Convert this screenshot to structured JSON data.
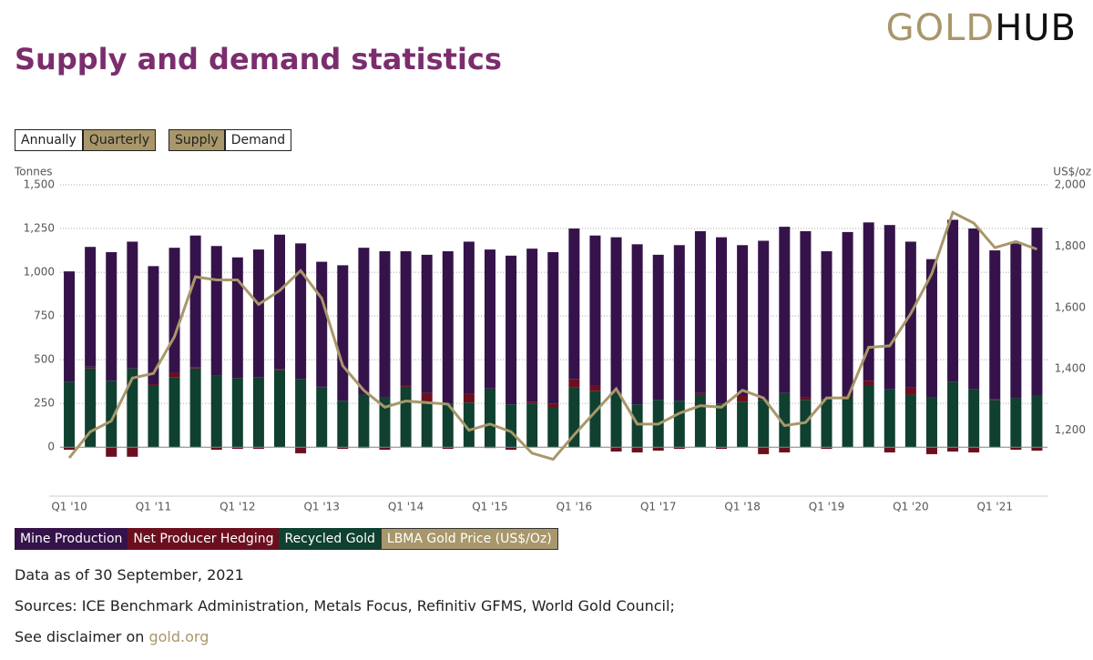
{
  "logo": {
    "gold": "GOLD",
    "hub": "HUB"
  },
  "title": "Supply and demand statistics",
  "controls": {
    "period": [
      "Annually",
      "Quarterly"
    ],
    "view": [
      "Supply",
      "Demand"
    ]
  },
  "chart_data": {
    "type": "bar",
    "stacked": true,
    "grid": true,
    "y_label": "Tonnes",
    "y2_label": "US$/oz",
    "categories": [
      "Q1 '10",
      null,
      null,
      null,
      "Q1 '11",
      null,
      null,
      null,
      "Q1 '12",
      null,
      null,
      null,
      "Q1 '13",
      null,
      null,
      null,
      "Q1 '14",
      null,
      null,
      null,
      "Q1 '15",
      null,
      null,
      null,
      "Q1 '16",
      null,
      null,
      null,
      "Q1 '17",
      null,
      null,
      null,
      "Q1 '18",
      null,
      null,
      null,
      "Q1 '19",
      null,
      null,
      null,
      "Q1 '20",
      null,
      null,
      null,
      "Q1 '21",
      null,
      null
    ],
    "series": [
      {
        "name": "Mine Production",
        "color": "#35134a",
        "values": [
          630,
          685,
          735,
          725,
          675,
          715,
          755,
          740,
          690,
          730,
          770,
          775,
          715,
          775,
          840,
          835,
          765,
          790,
          870,
          870,
          795,
          850,
          875,
          865,
          860,
          860,
          890,
          915,
          830,
          890,
          925,
          950,
          860,
          910,
          950,
          950,
          845,
          935,
          905,
          940,
          835,
          790,
          925,
          920,
          850,
          885,
          960
        ]
      },
      {
        "name": "Net Producer Hedging",
        "color": "#6b0f1f",
        "values": [
          -15,
          10,
          -55,
          -55,
          5,
          25,
          5,
          -15,
          -10,
          -10,
          5,
          -35,
          5,
          -10,
          -5,
          -15,
          10,
          50,
          -10,
          50,
          -5,
          -15,
          10,
          25,
          50,
          30,
          -25,
          -30,
          -20,
          -10,
          10,
          -10,
          35,
          -40,
          -30,
          15,
          -10,
          5,
          25,
          -30,
          40,
          -40,
          -25,
          -30,
          5,
          -15,
          -20
        ]
      },
      {
        "name": "Recycled Gold",
        "color": "#0f4030",
        "values": [
          375,
          450,
          380,
          450,
          355,
          400,
          450,
          410,
          395,
          400,
          440,
          390,
          340,
          265,
          300,
          285,
          345,
          260,
          250,
          255,
          335,
          245,
          250,
          225,
          340,
          320,
          310,
          245,
          270,
          265,
          300,
          250,
          260,
          270,
          310,
          270,
          275,
          290,
          355,
          330,
          300,
          285,
          375,
          330,
          270,
          280,
          295
        ]
      },
      {
        "name": "LBMA Gold Price (US$/Oz)",
        "color": "#a8976a",
        "type": "line",
        "axis": "y2",
        "values": [
          1110,
          1195,
          1230,
          1370,
          1385,
          1505,
          1700,
          1690,
          1690,
          1610,
          1655,
          1720,
          1630,
          1410,
          1330,
          1275,
          1295,
          1290,
          1285,
          1200,
          1220,
          1195,
          1125,
          1105,
          1185,
          1260,
          1335,
          1220,
          1220,
          1255,
          1280,
          1275,
          1330,
          1305,
          1215,
          1225,
          1305,
          1305,
          1470,
          1475,
          1580,
          1710,
          1910,
          1875,
          1795,
          1815,
          1790
        ]
      }
    ],
    "ylim": [
      -280,
      1500
    ],
    "yticks": [
      0,
      250,
      500,
      750,
      {
        "value": 1000,
        "label": "1,000"
      },
      {
        "value": 1250,
        "label": "1,250"
      },
      {
        "value": 1500,
        "label": "1,500"
      }
    ],
    "y2lim": [
      985,
      2000
    ],
    "y2ticks": [
      {
        "value": 1200,
        "label": "1,200"
      },
      {
        "value": 1400,
        "label": "1,400"
      },
      {
        "value": 1600,
        "label": "1,600"
      },
      {
        "value": 1800,
        "label": "1,800"
      },
      {
        "value": 2000,
        "label": "2,000"
      }
    ]
  },
  "notes": {
    "date": "Data as of 30 September, 2021",
    "sources": "Sources: ICE Benchmark Administration, Metals Focus, Refinitiv GFMS, World Gold Council;",
    "disclaimer": "See disclaimer on ",
    "link": "gold.org"
  }
}
